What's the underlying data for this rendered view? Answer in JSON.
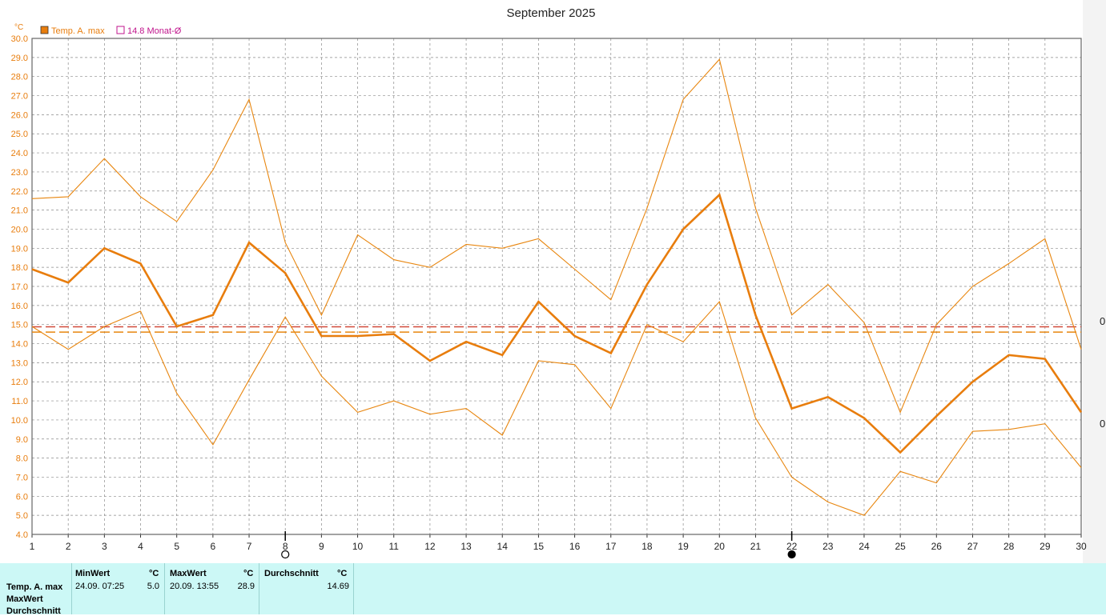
{
  "title": "September 2025",
  "unit": "°C",
  "legend": [
    {
      "label": "Temp. A. max",
      "color": "#e87d0d"
    },
    {
      "label": "14.8 Monat-Ø",
      "color": "#c0148c"
    }
  ],
  "colors": {
    "main": "#e87d0d",
    "band": "#e8860f",
    "avg_line": "#d24a3a",
    "avg_line2": "#e8860f",
    "grid": "#8a8a8a"
  },
  "chart_data": {
    "type": "line",
    "title": "September 2025",
    "ylabel": "°C",
    "ylim": [
      4.0,
      30.0
    ],
    "ystep": 1.0,
    "x": [
      1,
      2,
      3,
      4,
      5,
      6,
      7,
      8,
      9,
      10,
      11,
      12,
      13,
      14,
      15,
      16,
      17,
      18,
      19,
      20,
      21,
      22,
      23,
      24,
      25,
      26,
      27,
      28,
      29,
      30
    ],
    "series": [
      {
        "name": "Temp. A. max",
        "values": [
          17.9,
          17.2,
          19.0,
          18.2,
          14.9,
          15.5,
          19.3,
          17.7,
          14.4,
          14.4,
          14.5,
          13.1,
          14.1,
          13.4,
          16.2,
          14.4,
          13.5,
          17.1,
          20.0,
          21.8,
          15.5,
          10.6,
          11.2,
          10.1,
          8.3,
          10.2,
          12.0,
          13.4,
          13.2,
          10.4
        ]
      },
      {
        "values": [
          21.6,
          21.7,
          23.7,
          21.7,
          20.4,
          23.1,
          26.8,
          19.3,
          15.5,
          19.7,
          18.4,
          18.0,
          19.2,
          19.0,
          19.5,
          17.9,
          16.3,
          21.1,
          26.8,
          28.9,
          21.1,
          15.5,
          17.1,
          15.1,
          10.4,
          15.0,
          17.0,
          18.2,
          19.5,
          13.7
        ]
      },
      {
        "values": [
          14.9,
          13.7,
          14.9,
          15.7,
          11.4,
          8.7,
          12.1,
          15.4,
          12.3,
          10.4,
          11.0,
          10.3,
          10.6,
          9.2,
          13.1,
          12.9,
          10.6,
          15.0,
          14.1,
          16.2,
          10.1,
          7.0,
          5.7,
          5.0,
          7.3,
          6.7,
          9.4,
          9.5,
          9.8,
          7.5
        ]
      }
    ],
    "monthly_avg": 14.8,
    "avg_lines": [
      14.8,
      14.69
    ],
    "moon_markers": [
      {
        "day": 8,
        "phase": "full"
      },
      {
        "day": 22,
        "phase": "new"
      }
    ],
    "grid": true,
    "legend_position": "top-left"
  },
  "stats": {
    "row_labels": [
      "Temp. A. max",
      "MaxWert",
      "Durchschnitt"
    ],
    "min": {
      "header": "MinWert",
      "unit": "°C",
      "when": "24.09.  07:25",
      "value": "5.0"
    },
    "max": {
      "header": "MaxWert",
      "unit": "°C",
      "when": "20.09.  13:55",
      "value": "28.9"
    },
    "avg": {
      "header": "Durchschnitt",
      "unit": "°C",
      "value": "14.69"
    }
  },
  "right_fragments": [
    "0",
    "0"
  ]
}
